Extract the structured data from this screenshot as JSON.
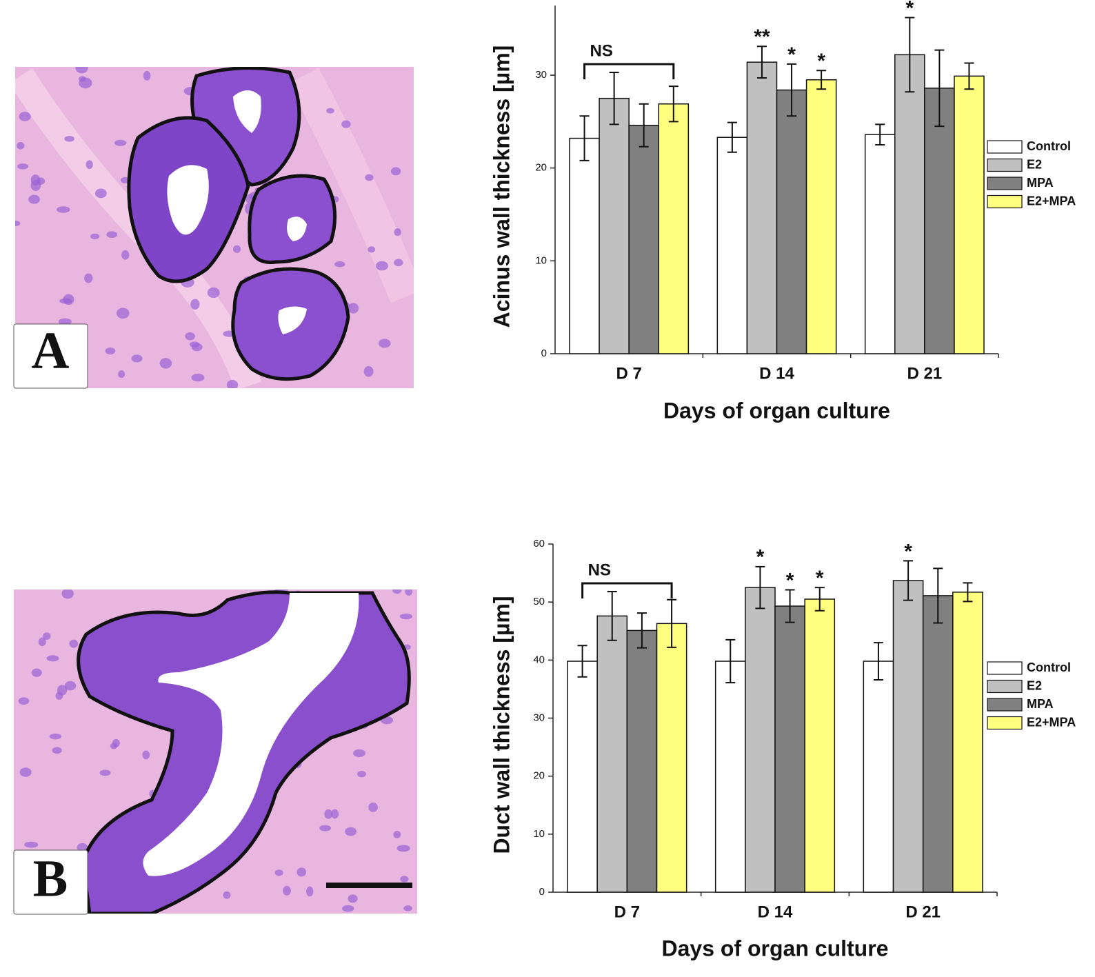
{
  "panels": [
    {
      "label": "A"
    },
    {
      "label": "B"
    }
  ],
  "chart_data": [
    {
      "type": "bar",
      "y_label": "Acinus wall thickness [µm]",
      "x_label": "Days of organ culture",
      "categories": [
        "D  7",
        "D 14",
        "D 21"
      ],
      "series": [
        {
          "name": "Control",
          "color": "#ffffff",
          "values": [
            23.2,
            23.3,
            23.6
          ],
          "errors": [
            2.4,
            1.6,
            1.1
          ]
        },
        {
          "name": "E2",
          "color": "#c0c0c0",
          "values": [
            27.5,
            31.4,
            32.2
          ],
          "errors": [
            2.8,
            1.7,
            4.0
          ]
        },
        {
          "name": "MPA",
          "color": "#808080",
          "values": [
            24.6,
            28.4,
            28.6
          ],
          "errors": [
            2.3,
            2.8,
            4.1
          ]
        },
        {
          "name": "E2+MPA",
          "color": "#ffff80",
          "values": [
            26.9,
            29.5,
            29.9
          ],
          "errors": [
            1.9,
            1.0,
            1.4
          ]
        }
      ],
      "ylim": [
        0,
        37.5
      ],
      "yticks": [
        0,
        10,
        20,
        30
      ],
      "annotations": [
        "NS",
        "**",
        "*",
        "*",
        "*"
      ]
    },
    {
      "type": "bar",
      "y_label": "Duct wall thickness [µm]",
      "x_label": "Days of organ culture",
      "categories": [
        "D  7",
        "D 14",
        "D 21"
      ],
      "series": [
        {
          "name": "Control",
          "color": "#ffffff",
          "values": [
            39.8,
            39.8,
            39.8
          ],
          "errors": [
            2.7,
            3.7,
            3.2
          ]
        },
        {
          "name": "E2",
          "color": "#c0c0c0",
          "values": [
            47.6,
            52.5,
            53.7
          ],
          "errors": [
            4.2,
            3.6,
            3.4
          ]
        },
        {
          "name": "MPA",
          "color": "#808080",
          "values": [
            45.1,
            49.3,
            51.1
          ],
          "errors": [
            3.0,
            2.8,
            4.7
          ]
        },
        {
          "name": "E2+MPA",
          "color": "#ffff80",
          "values": [
            46.3,
            50.5,
            51.7
          ],
          "errors": [
            4.1,
            2.0,
            1.6
          ]
        }
      ],
      "ylim": [
        0,
        60
      ],
      "yticks": [
        0,
        10,
        20,
        30,
        40,
        50,
        60
      ],
      "annotations": [
        "NS",
        "*",
        "*",
        "*",
        "*"
      ]
    }
  ]
}
